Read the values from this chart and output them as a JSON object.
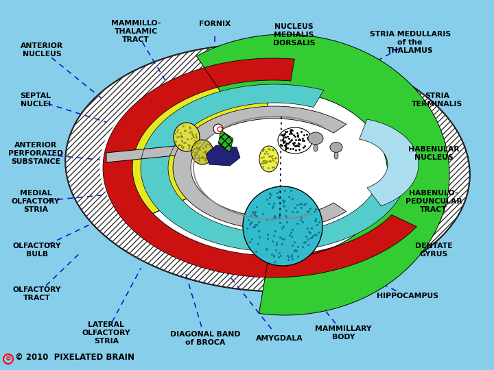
{
  "bg_color": "#87CEEB",
  "copyright": "© 2010  PIXELATED BRAIN",
  "label_fontsize": 7.8,
  "line_color": "#1111CC",
  "labels": {
    "ANTERIOR\nNUCLEUS": [
      0.085,
      0.865,
      0.205,
      0.735
    ],
    "MAMMILLO-\nTHALAMIC\nTRACT": [
      0.275,
      0.915,
      0.345,
      0.76
    ],
    "FORNIX": [
      0.435,
      0.935,
      0.435,
      0.805
    ],
    "NUCLEUS\nMEDIALIS\nDORSALIS": [
      0.595,
      0.905,
      0.525,
      0.775
    ],
    "STRIA MEDULLARIS\nof the\nTHALAMUS": [
      0.83,
      0.885,
      0.675,
      0.77
    ],
    "SEPTAL\nNUCLEI": [
      0.072,
      0.73,
      0.215,
      0.67
    ],
    "STRIA\nTERMINALIS": [
      0.885,
      0.73,
      0.71,
      0.66
    ],
    "ANTERIOR\nPERFORATED\nSUBSTANCE": [
      0.072,
      0.585,
      0.225,
      0.565
    ],
    "HABENULAR\nNUCLEUS": [
      0.878,
      0.585,
      0.715,
      0.555
    ],
    "MEDIAL\nOLFACTORY\nSTRIA": [
      0.072,
      0.455,
      0.225,
      0.475
    ],
    "HABENULO-\nPEDUNCULAR\nTRACT": [
      0.878,
      0.455,
      0.735,
      0.455
    ],
    "OLFACTORY\nBULB": [
      0.075,
      0.325,
      0.185,
      0.395
    ],
    "DENTATE\nGYRUS": [
      0.878,
      0.325,
      0.725,
      0.37
    ],
    "OLFACTORY\nTRACT": [
      0.075,
      0.205,
      0.165,
      0.32
    ],
    "HIPPOCAMPUS": [
      0.825,
      0.2,
      0.695,
      0.28
    ],
    "LATERAL\nOLFACTORY\nSTRIA": [
      0.215,
      0.1,
      0.285,
      0.275
    ],
    "DIAGONAL BAND\nof BROCA": [
      0.415,
      0.085,
      0.375,
      0.265
    ],
    "AMYGDALA": [
      0.565,
      0.085,
      0.455,
      0.27
    ],
    "MAMMILLARY\nBODY": [
      0.695,
      0.1,
      0.595,
      0.265
    ]
  }
}
